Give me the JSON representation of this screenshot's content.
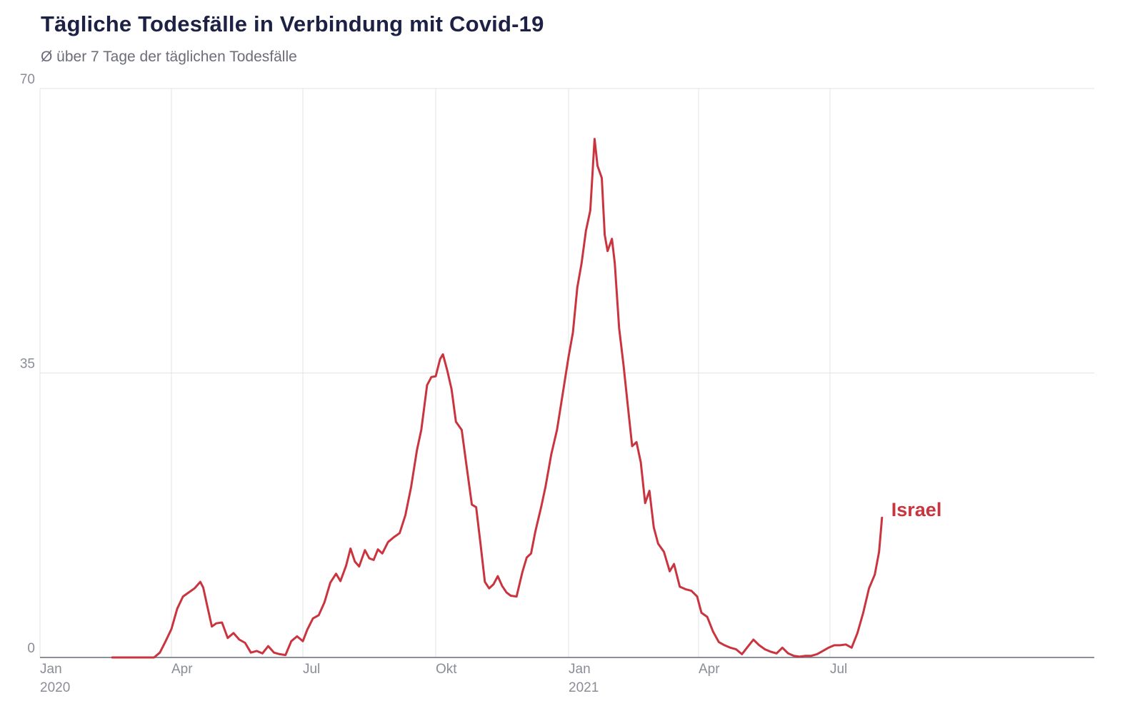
{
  "header": {
    "title": "Tägliche Todesfälle in Verbindung mit Covid-19",
    "subtitle": "Ø über 7 Tage der täglichen Todesfälle"
  },
  "chart_data": {
    "type": "line",
    "title": "Tägliche Todesfälle in Verbindung mit Covid-19",
    "subtitle": "Ø über 7 Tage der täglichen Todesfälle",
    "xlabel": "",
    "ylabel": "",
    "ylim": [
      0,
      70
    ],
    "xlim": [
      "2020-01-01",
      "2021-12-31"
    ],
    "y_ticks": [
      {
        "value": 0,
        "label": "0"
      },
      {
        "value": 35,
        "label": "35"
      },
      {
        "value": 70,
        "label": "70"
      }
    ],
    "x_ticks": [
      {
        "date": "2020-01-01",
        "label": "Jan",
        "sub": "2020"
      },
      {
        "date": "2020-04-01",
        "label": "Apr",
        "sub": ""
      },
      {
        "date": "2020-07-01",
        "label": "Jul",
        "sub": ""
      },
      {
        "date": "2020-10-01",
        "label": "Okt",
        "sub": ""
      },
      {
        "date": "2021-01-01",
        "label": "Jan",
        "sub": "2021"
      },
      {
        "date": "2021-04-01",
        "label": "Apr",
        "sub": ""
      },
      {
        "date": "2021-07-01",
        "label": "Jul",
        "sub": ""
      }
    ],
    "grid": true,
    "legend": "inline-end-label",
    "series": [
      {
        "name": "Israel",
        "color": "#c9343f",
        "points": [
          [
            "2020-02-20",
            0
          ],
          [
            "2020-03-20",
            0
          ],
          [
            "2020-03-24",
            0.6
          ],
          [
            "2020-03-28",
            2.0
          ],
          [
            "2020-04-01",
            3.5
          ],
          [
            "2020-04-05",
            6.0
          ],
          [
            "2020-04-09",
            7.5
          ],
          [
            "2020-04-13",
            8.0
          ],
          [
            "2020-04-17",
            8.5
          ],
          [
            "2020-04-21",
            9.3
          ],
          [
            "2020-04-23",
            8.6
          ],
          [
            "2020-04-26",
            6.2
          ],
          [
            "2020-04-29",
            3.8
          ],
          [
            "2020-05-02",
            4.2
          ],
          [
            "2020-05-06",
            4.3
          ],
          [
            "2020-05-10",
            2.4
          ],
          [
            "2020-05-14",
            3.0
          ],
          [
            "2020-05-18",
            2.2
          ],
          [
            "2020-05-22",
            1.8
          ],
          [
            "2020-05-26",
            0.6
          ],
          [
            "2020-05-30",
            0.8
          ],
          [
            "2020-06-03",
            0.5
          ],
          [
            "2020-06-07",
            1.4
          ],
          [
            "2020-06-11",
            0.6
          ],
          [
            "2020-06-15",
            0.4
          ],
          [
            "2020-06-19",
            0.3
          ],
          [
            "2020-06-23",
            2.0
          ],
          [
            "2020-06-27",
            2.6
          ],
          [
            "2020-07-01",
            2.0
          ],
          [
            "2020-07-04",
            3.4
          ],
          [
            "2020-07-08",
            4.8
          ],
          [
            "2020-07-12",
            5.2
          ],
          [
            "2020-07-16",
            6.8
          ],
          [
            "2020-07-20",
            9.2
          ],
          [
            "2020-07-24",
            10.3
          ],
          [
            "2020-07-27",
            9.4
          ],
          [
            "2020-07-31",
            11.3
          ],
          [
            "2020-08-03",
            13.4
          ],
          [
            "2020-08-06",
            11.8
          ],
          [
            "2020-08-09",
            11.2
          ],
          [
            "2020-08-13",
            13.2
          ],
          [
            "2020-08-16",
            12.2
          ],
          [
            "2020-08-19",
            12.0
          ],
          [
            "2020-08-22",
            13.3
          ],
          [
            "2020-08-25",
            12.8
          ],
          [
            "2020-08-29",
            14.2
          ],
          [
            "2020-09-02",
            14.8
          ],
          [
            "2020-09-06",
            15.3
          ],
          [
            "2020-09-10",
            17.5
          ],
          [
            "2020-09-14",
            21.0
          ],
          [
            "2020-09-18",
            25.5
          ],
          [
            "2020-09-21",
            28.0
          ],
          [
            "2020-09-25",
            33.5
          ],
          [
            "2020-09-28",
            34.5
          ],
          [
            "2020-10-01",
            34.6
          ],
          [
            "2020-10-04",
            36.7
          ],
          [
            "2020-10-06",
            37.3
          ],
          [
            "2020-10-09",
            35.3
          ],
          [
            "2020-10-12",
            33.0
          ],
          [
            "2020-10-15",
            29.0
          ],
          [
            "2020-10-19",
            28.0
          ],
          [
            "2020-10-22",
            24.0
          ],
          [
            "2020-10-26",
            18.8
          ],
          [
            "2020-10-29",
            18.5
          ],
          [
            "2020-11-01",
            14.0
          ],
          [
            "2020-11-04",
            9.3
          ],
          [
            "2020-11-07",
            8.5
          ],
          [
            "2020-11-10",
            9.0
          ],
          [
            "2020-11-13",
            10.0
          ],
          [
            "2020-11-16",
            8.8
          ],
          [
            "2020-11-19",
            8.0
          ],
          [
            "2020-11-22",
            7.6
          ],
          [
            "2020-11-26",
            7.5
          ],
          [
            "2020-11-30",
            10.5
          ],
          [
            "2020-12-03",
            12.3
          ],
          [
            "2020-12-06",
            12.8
          ],
          [
            "2020-12-09",
            15.5
          ],
          [
            "2020-12-13",
            18.5
          ],
          [
            "2020-12-16",
            21.0
          ],
          [
            "2020-12-20",
            25.0
          ],
          [
            "2020-12-24",
            28.0
          ],
          [
            "2020-12-28",
            32.5
          ],
          [
            "2021-01-01",
            37.0
          ],
          [
            "2021-01-04",
            40.0
          ],
          [
            "2021-01-07",
            45.5
          ],
          [
            "2021-01-10",
            48.5
          ],
          [
            "2021-01-13",
            52.5
          ],
          [
            "2021-01-16",
            55.0
          ],
          [
            "2021-01-19",
            63.8
          ],
          [
            "2021-01-21",
            60.5
          ],
          [
            "2021-01-24",
            59.0
          ],
          [
            "2021-01-26",
            52.0
          ],
          [
            "2021-01-28",
            50.0
          ],
          [
            "2021-01-31",
            51.5
          ],
          [
            "2021-02-02",
            48.5
          ],
          [
            "2021-02-05",
            40.5
          ],
          [
            "2021-02-08",
            36.0
          ],
          [
            "2021-02-11",
            31.0
          ],
          [
            "2021-02-14",
            26.0
          ],
          [
            "2021-02-17",
            26.5
          ],
          [
            "2021-02-20",
            24.0
          ],
          [
            "2021-02-23",
            19.0
          ],
          [
            "2021-02-26",
            20.5
          ],
          [
            "2021-03-01",
            16.0
          ],
          [
            "2021-03-04",
            14.0
          ],
          [
            "2021-03-08",
            13.0
          ],
          [
            "2021-03-12",
            10.6
          ],
          [
            "2021-03-15",
            11.5
          ],
          [
            "2021-03-19",
            8.7
          ],
          [
            "2021-03-23",
            8.4
          ],
          [
            "2021-03-27",
            8.2
          ],
          [
            "2021-03-31",
            7.5
          ],
          [
            "2021-04-03",
            5.5
          ],
          [
            "2021-04-07",
            5.0
          ],
          [
            "2021-04-11",
            3.2
          ],
          [
            "2021-04-15",
            1.9
          ],
          [
            "2021-04-19",
            1.5
          ],
          [
            "2021-04-23",
            1.2
          ],
          [
            "2021-04-27",
            1.0
          ],
          [
            "2021-05-01",
            0.4
          ],
          [
            "2021-05-05",
            1.3
          ],
          [
            "2021-05-09",
            2.2
          ],
          [
            "2021-05-13",
            1.5
          ],
          [
            "2021-05-17",
            1.0
          ],
          [
            "2021-05-21",
            0.7
          ],
          [
            "2021-05-25",
            0.5
          ],
          [
            "2021-05-29",
            1.2
          ],
          [
            "2021-06-02",
            0.5
          ],
          [
            "2021-06-06",
            0.2
          ],
          [
            "2021-06-10",
            0.1
          ],
          [
            "2021-06-14",
            0.2
          ],
          [
            "2021-06-18",
            0.2
          ],
          [
            "2021-06-22",
            0.4
          ],
          [
            "2021-06-26",
            0.8
          ],
          [
            "2021-06-30",
            1.2
          ],
          [
            "2021-07-04",
            1.5
          ],
          [
            "2021-07-08",
            1.5
          ],
          [
            "2021-07-12",
            1.6
          ],
          [
            "2021-07-16",
            1.2
          ],
          [
            "2021-07-20",
            3.0
          ],
          [
            "2021-07-24",
            5.5
          ],
          [
            "2021-07-28",
            8.5
          ],
          [
            "2021-08-01",
            10.2
          ],
          [
            "2021-08-04",
            13.0
          ],
          [
            "2021-08-06",
            17.2
          ]
        ]
      }
    ]
  }
}
